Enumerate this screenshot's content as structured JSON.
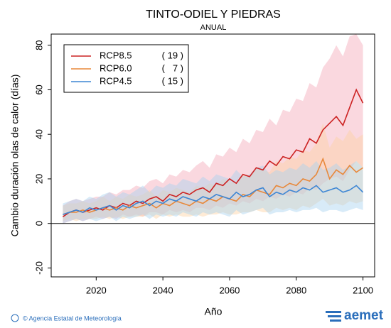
{
  "chart_data": {
    "type": "line",
    "title": "TINTO-ODIEL Y PIEDRAS",
    "subtitle": "ANUAL",
    "x_label": "Año",
    "y_label": "Cambio duración olas de calor (días)",
    "footer_left": "© Agencia Estatal de Meteorología",
    "footer_right": "aemet",
    "x": [
      2010,
      2012,
      2014,
      2016,
      2018,
      2020,
      2022,
      2024,
      2026,
      2028,
      2030,
      2032,
      2034,
      2036,
      2038,
      2040,
      2042,
      2044,
      2046,
      2048,
      2050,
      2052,
      2054,
      2056,
      2058,
      2060,
      2062,
      2064,
      2066,
      2068,
      2070,
      2072,
      2074,
      2076,
      2078,
      2080,
      2082,
      2084,
      2086,
      2088,
      2090,
      2092,
      2094,
      2096,
      2098,
      2100
    ],
    "series": [
      {
        "name": "RCP8.5",
        "count_label": "( 19 )",
        "color": "#cc2222",
        "band_color": "#f5a9b8",
        "values": [
          3,
          5,
          6,
          5,
          6,
          7,
          6,
          8,
          7,
          9,
          8,
          10,
          9,
          11,
          12,
          10,
          13,
          12,
          14,
          13,
          15,
          16,
          14,
          18,
          17,
          20,
          18,
          22,
          21,
          25,
          24,
          28,
          26,
          30,
          29,
          33,
          32,
          38,
          36,
          42,
          45,
          48,
          44,
          52,
          60,
          54
        ],
        "lower": [
          0,
          1,
          2,
          1,
          2,
          3,
          2,
          3,
          2,
          4,
          3,
          4,
          3,
          5,
          5,
          4,
          6,
          5,
          6,
          5,
          7,
          7,
          6,
          8,
          7,
          9,
          8,
          10,
          9,
          11,
          10,
          12,
          11,
          13,
          12,
          14,
          13,
          16,
          15,
          18,
          20,
          21,
          19,
          24,
          28,
          25
        ],
        "upper": [
          8,
          10,
          11,
          10,
          11,
          12,
          12,
          14,
          13,
          15,
          15,
          17,
          16,
          19,
          20,
          18,
          22,
          21,
          24,
          23,
          26,
          28,
          25,
          31,
          30,
          34,
          32,
          38,
          36,
          42,
          41,
          47,
          44,
          51,
          50,
          56,
          55,
          63,
          61,
          70,
          74,
          80,
          75,
          84,
          85,
          80
        ]
      },
      {
        "name": "RCP6.0",
        "count_label": "(   7 )",
        "color": "#e8883a",
        "band_color": "#fcd2a4",
        "values": [
          4,
          5,
          5,
          6,
          5,
          6,
          7,
          6,
          7,
          6,
          8,
          7,
          8,
          9,
          7,
          9,
          8,
          10,
          9,
          8,
          10,
          9,
          11,
          10,
          12,
          11,
          10,
          13,
          12,
          15,
          14,
          13,
          17,
          16,
          18,
          17,
          20,
          19,
          22,
          29,
          20,
          24,
          22,
          26,
          23,
          25
        ],
        "lower": [
          1,
          2,
          1,
          2,
          2,
          2,
          3,
          2,
          3,
          2,
          3,
          3,
          3,
          4,
          2,
          4,
          3,
          4,
          3,
          3,
          4,
          3,
          4,
          4,
          5,
          4,
          4,
          5,
          5,
          6,
          5,
          5,
          7,
          6,
          7,
          6,
          8,
          7,
          9,
          11,
          8,
          9,
          8,
          10,
          9,
          10
        ],
        "upper": [
          8,
          9,
          9,
          10,
          9,
          10,
          12,
          10,
          12,
          11,
          13,
          12,
          13,
          15,
          12,
          15,
          14,
          16,
          15,
          14,
          17,
          16,
          18,
          17,
          20,
          19,
          18,
          22,
          21,
          25,
          24,
          23,
          28,
          27,
          30,
          29,
          33,
          32,
          36,
          45,
          34,
          39,
          37,
          42,
          38,
          40
        ]
      },
      {
        "name": "RCP4.5",
        "count_label": "( 15 )",
        "color": "#3d86d4",
        "band_color": "#a9d3ef",
        "values": [
          4,
          5,
          6,
          5,
          7,
          6,
          7,
          8,
          6,
          8,
          7,
          9,
          10,
          8,
          10,
          9,
          11,
          10,
          12,
          11,
          10,
          12,
          11,
          13,
          12,
          11,
          14,
          12,
          13,
          15,
          16,
          12,
          14,
          13,
          15,
          14,
          16,
          15,
          17,
          14,
          15,
          16,
          14,
          15,
          17,
          14
        ],
        "lower": [
          0,
          1,
          2,
          1,
          2,
          1,
          2,
          3,
          1,
          3,
          2,
          3,
          4,
          2,
          4,
          3,
          4,
          3,
          5,
          4,
          3,
          5,
          4,
          5,
          4,
          3,
          6,
          4,
          5,
          6,
          7,
          4,
          5,
          5,
          6,
          5,
          6,
          6,
          7,
          5,
          6,
          6,
          5,
          6,
          7,
          6
        ],
        "upper": [
          9,
          10,
          11,
          10,
          12,
          11,
          13,
          14,
          12,
          14,
          13,
          15,
          17,
          14,
          17,
          16,
          18,
          17,
          20,
          19,
          18,
          21,
          19,
          22,
          21,
          20,
          24,
          21,
          22,
          25,
          26,
          22,
          24,
          23,
          25,
          24,
          27,
          25,
          28,
          24,
          25,
          27,
          24,
          26,
          28,
          25
        ]
      }
    ],
    "xlim": [
      2006.5,
      2103.5
    ],
    "xticks": [
      2020,
      2040,
      2060,
      2080,
      2100
    ],
    "ylim": [
      -24,
      85
    ],
    "yticks": [
      -20,
      0,
      20,
      40,
      60,
      80
    ],
    "hline": 0,
    "legend": "upper left"
  }
}
